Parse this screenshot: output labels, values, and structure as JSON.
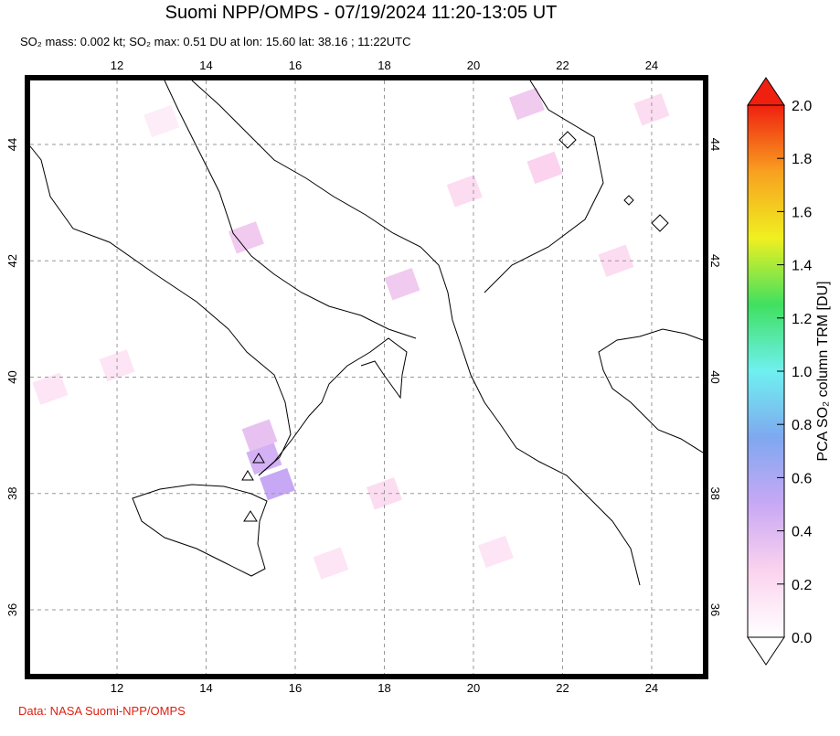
{
  "title": "Suomi NPP/OMPS - 07/19/2024 11:20-13:05 UT",
  "subtitle": "SO₂ mass: 0.002 kt; SO₂ max: 0.51 DU at lon: 15.60 lat: 38.16 ; 11:22UTC",
  "footer": "Data: NASA Suomi-NPP/OMPS",
  "map": {
    "lon_range": [
      10.05,
      25.15
    ],
    "lat_range": [
      34.9,
      45.1
    ],
    "lon_ticks": [
      12,
      14,
      16,
      18,
      20,
      22,
      24
    ],
    "lat_ticks": [
      36,
      38,
      40,
      42,
      44
    ],
    "cells": [
      {
        "lon": 15.3,
        "lat": 38.6,
        "value": 0.45
      },
      {
        "lon": 15.6,
        "lat": 38.16,
        "value": 0.51
      },
      {
        "lon": 15.2,
        "lat": 39.0,
        "value": 0.35
      },
      {
        "lon": 14.9,
        "lat": 42.4,
        "value": 0.3
      },
      {
        "lon": 18.4,
        "lat": 41.6,
        "value": 0.3
      },
      {
        "lon": 21.2,
        "lat": 44.7,
        "value": 0.3
      },
      {
        "lon": 21.6,
        "lat": 43.6,
        "value": 0.25
      },
      {
        "lon": 19.8,
        "lat": 43.2,
        "value": 0.2
      },
      {
        "lon": 24.0,
        "lat": 44.6,
        "value": 0.2
      },
      {
        "lon": 18.0,
        "lat": 38.0,
        "value": 0.2
      },
      {
        "lon": 12.0,
        "lat": 40.2,
        "value": 0.15
      },
      {
        "lon": 10.5,
        "lat": 39.8,
        "value": 0.15
      },
      {
        "lon": 20.5,
        "lat": 37.0,
        "value": 0.15
      },
      {
        "lon": 23.2,
        "lat": 42.0,
        "value": 0.2
      },
      {
        "lon": 16.8,
        "lat": 36.8,
        "value": 0.15
      },
      {
        "lon": 13.0,
        "lat": 44.4,
        "value": 0.1
      }
    ]
  },
  "colorbar": {
    "label": "PCA SO₂ column TRM [DU]",
    "range": [
      0,
      2
    ],
    "colors": [
      "#ffffff",
      "#fbd3ee",
      "#c9a8f5",
      "#7fa8f0",
      "#6ff0f0",
      "#40e060",
      "#f0f020",
      "#f8a020",
      "#f02010"
    ],
    "ticks": [
      {
        "value": 0,
        "label": "0.0"
      },
      {
        "value": 0.2,
        "label": "0.2"
      },
      {
        "value": 0.4,
        "label": "0.4"
      },
      {
        "value": 0.6,
        "label": "0.6"
      },
      {
        "value": 0.8,
        "label": "0.8"
      },
      {
        "value": 1,
        "label": "1.0"
      },
      {
        "value": 1.2,
        "label": "1.2"
      },
      {
        "value": 1.4,
        "label": "1.4"
      },
      {
        "value": 1.6,
        "label": "1.6"
      },
      {
        "value": 1.8,
        "label": "1.8"
      },
      {
        "value": 2,
        "label": "2.0"
      }
    ]
  }
}
